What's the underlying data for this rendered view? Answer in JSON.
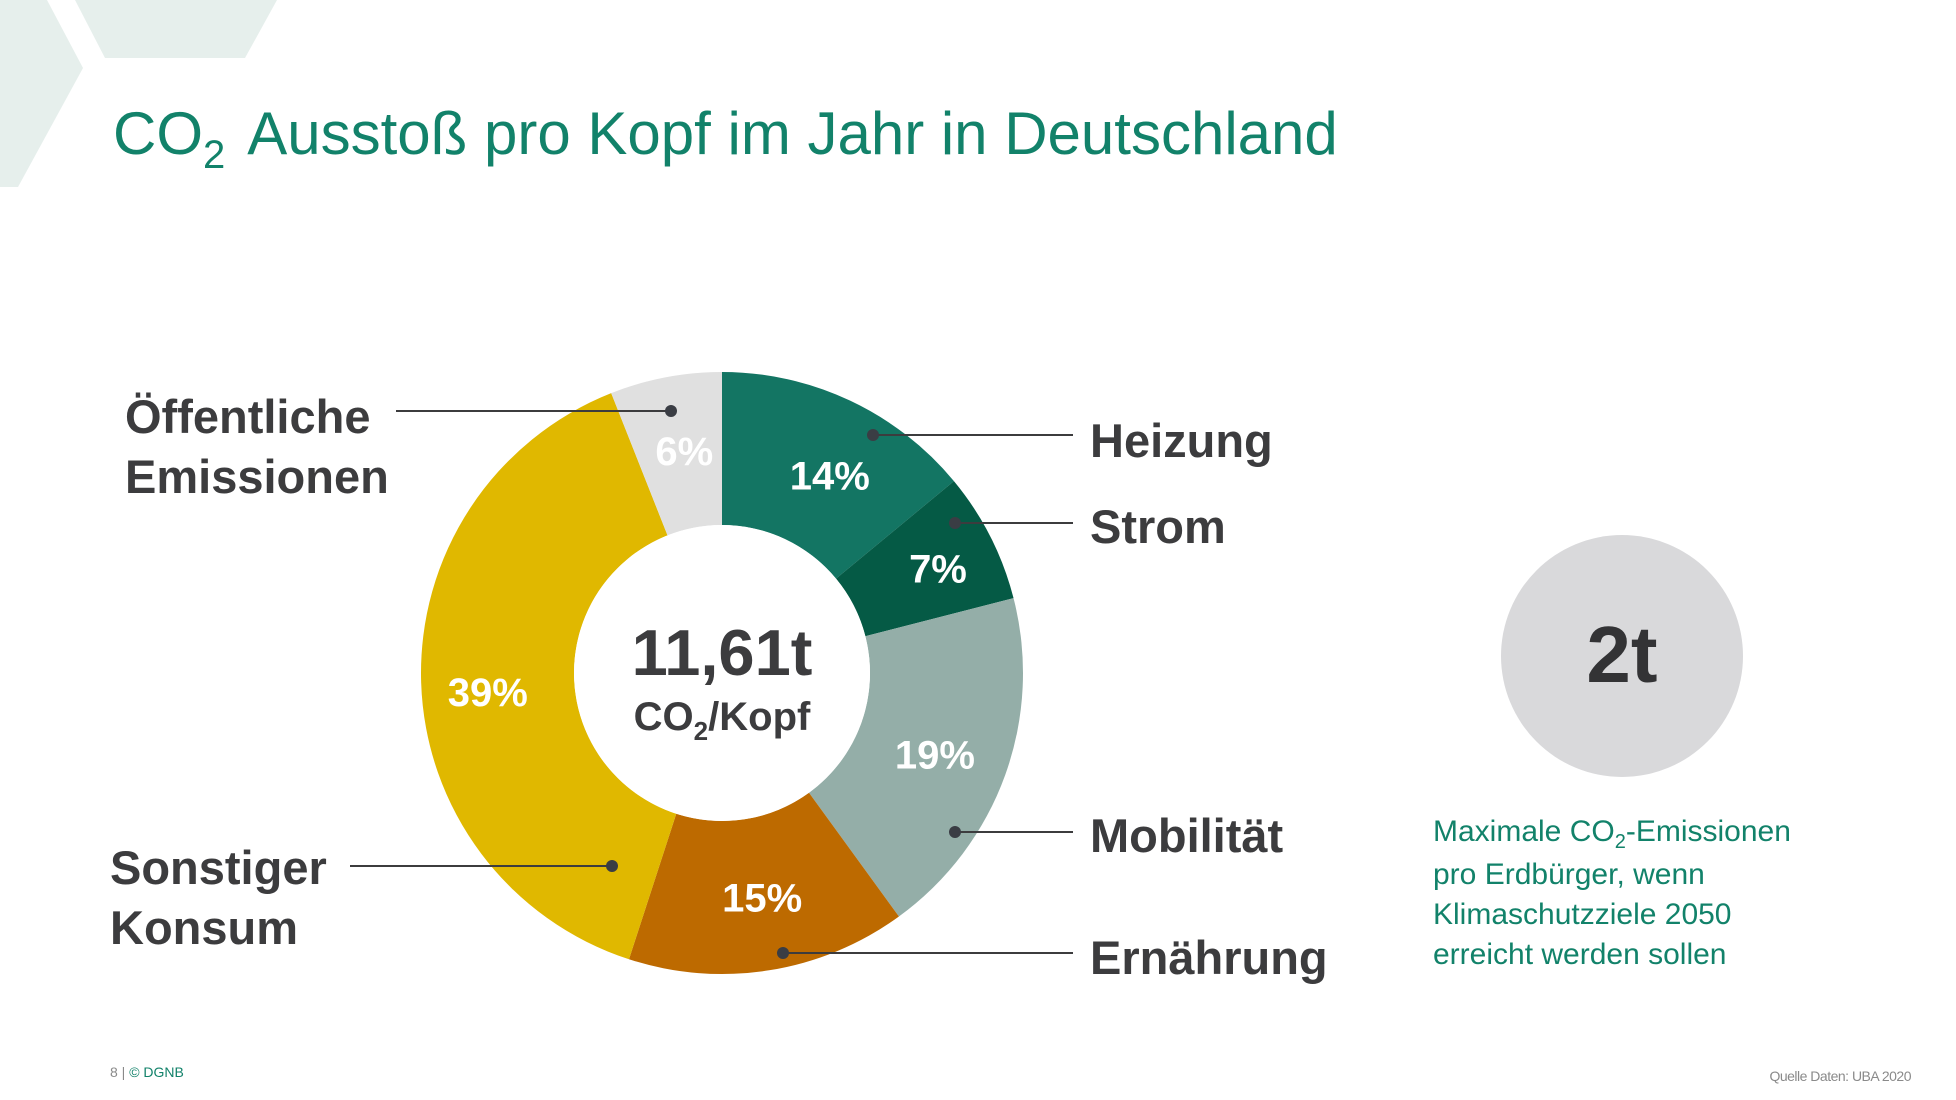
{
  "slide": {
    "title_prefix": "CO",
    "title_subscript": "2",
    "title_rest": "Ausstoß pro Kopf im Jahr in Deutschland",
    "page_number": "8 |",
    "copyright": "© DGNB",
    "source": "Quelle Daten: UBA 2020"
  },
  "center": {
    "value": "11,61t",
    "unit_prefix": "CO",
    "unit_subscript": "2",
    "unit_rest": "/Kopf"
  },
  "goal": {
    "value": "2t",
    "desc_line1_prefix": "Maximale CO",
    "desc_line1_subscript": "2",
    "desc_line1_rest": "-Emissionen",
    "desc_line2": "pro Erdbürger, wenn",
    "desc_line3": "Klimaschutzziele 2050",
    "desc_line4": "erreicht werden sollen"
  },
  "chart_data": {
    "type": "pie",
    "variant": "donut",
    "title": "CO2 Ausstoß pro Kopf im Jahr in Deutschland",
    "total_label": "11,61t CO2/Kopf",
    "start": "top",
    "direction": "clockwise",
    "categories": [
      "Heizung",
      "Strom",
      "Mobilität",
      "Ernährung",
      "Sonstiger Konsum",
      "Öffentliche Emissionen"
    ],
    "values": [
      14,
      7,
      19,
      15,
      39,
      6
    ],
    "value_labels": [
      "14%",
      "7%",
      "19%",
      "15%",
      "39%",
      "6%"
    ],
    "colors": [
      "#137563",
      "#055a45",
      "#94aea8",
      "#bd6a00",
      "#e0b800",
      "#e0e0e0"
    ],
    "label_lines": [
      [
        "Heizung"
      ],
      [
        "Strom"
      ],
      [
        "Mobilität"
      ],
      [
        "Ernährung"
      ],
      [
        "Sonstiger",
        "Konsum"
      ],
      [
        "Öffentliche",
        "Emissionen"
      ]
    ],
    "label_side": [
      "right",
      "right",
      "right",
      "right",
      "left",
      "left"
    ],
    "legend": "none (callout labels)"
  },
  "colors": {
    "accent": "#12826a",
    "text_dark": "#3c3c3e",
    "leader": "#3c3c3e",
    "deco": "#e6efec"
  }
}
